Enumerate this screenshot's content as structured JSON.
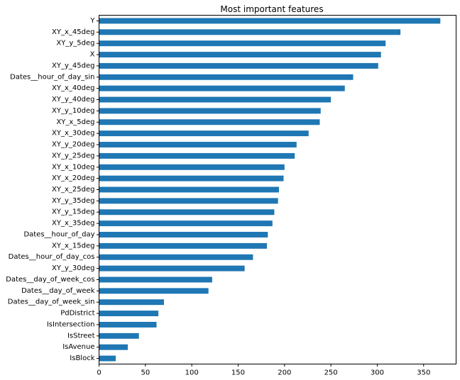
{
  "chart_data": {
    "type": "bar",
    "orientation": "horizontal",
    "title": "Most important features",
    "xlabel": "",
    "ylabel": "",
    "xlim": [
      0,
      385
    ],
    "xticks": [
      0,
      50,
      100,
      150,
      200,
      250,
      300,
      350
    ],
    "grid": false,
    "legend": "none",
    "bar_color": "#1f77b4",
    "categories": [
      "Y",
      "XY_x_45deg",
      "XY_y_5deg",
      "X",
      "XY_y_45deg",
      "Dates__hour_of_day_sin",
      "XY_x_40deg",
      "XY_y_40deg",
      "XY_y_10deg",
      "XY_x_5deg",
      "XY_x_30deg",
      "XY_y_20deg",
      "XY_y_25deg",
      "XY_x_10deg",
      "XY_x_20deg",
      "XY_x_25deg",
      "XY_y_35deg",
      "XY_y_15deg",
      "XY_x_35deg",
      "Dates__hour_of_day",
      "XY_x_15deg",
      "Dates__hour_of_day_cos",
      "XY_y_30deg",
      "Dates__day_of_week_cos",
      "Dates__day_of_week",
      "Dates__day_of_week_sin",
      "PdDistrict",
      "IsIntersection",
      "IsStreet",
      "IsAvenue",
      "IsBlock"
    ],
    "values": [
      368,
      325,
      309,
      304,
      301,
      274,
      265,
      250,
      239,
      238,
      226,
      213,
      211,
      200,
      199,
      194,
      193,
      189,
      187,
      182,
      181,
      166,
      157,
      122,
      118,
      70,
      64,
      62,
      43,
      31,
      18
    ]
  }
}
